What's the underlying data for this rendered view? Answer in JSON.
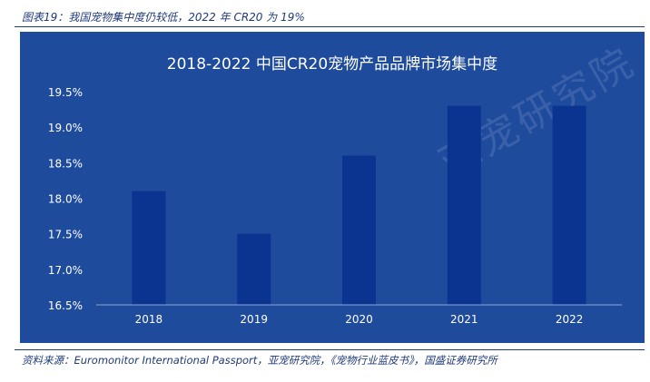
{
  "caption": "图表19：我国宠物集中度仍较低，2022 年 CR20 为 19%",
  "source": "资料来源：Euromonitor International Passport，亚宠研究院，《宠物行业蓝皮书》，国盛证券研究所",
  "watermark": "亚宠研究院",
  "colors": {
    "panel": "#1e4b9c",
    "bar": "#0b3491",
    "text": "#ffffff",
    "caption": "#1f3a78"
  },
  "chart_data": {
    "type": "bar",
    "title": "2018-2022 中国CR20宠物产品品牌市场集中度",
    "categories": [
      "2018",
      "2019",
      "2020",
      "2021",
      "2022"
    ],
    "values": [
      18.1,
      17.5,
      18.6,
      19.3,
      19.3
    ],
    "y_ticks": [
      "19.5%",
      "19.0%",
      "18.5%",
      "18.0%",
      "17.5%",
      "17.0%",
      "16.5%"
    ],
    "ylim": [
      16.5,
      19.5
    ],
    "xlabel": "",
    "ylabel": "",
    "grid": false,
    "legend": "none"
  }
}
